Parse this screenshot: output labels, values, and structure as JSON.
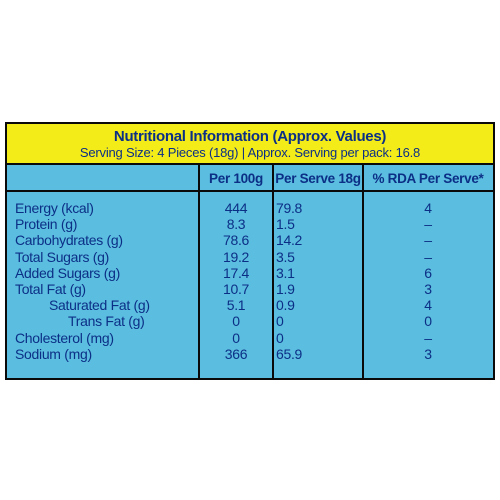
{
  "header": {
    "title": "Nutritional Information (Approx. Values)",
    "subtitle": "Serving Size: 4 Pieces (18g) | Approx. Serving per pack: 16.8"
  },
  "columns": {
    "per_100g": "Per 100g",
    "per_serve": "Per Serve 18g",
    "rda": "% RDA Per Serve*"
  },
  "rows": [
    {
      "name": "Energy (kcal)",
      "per_100g": "444",
      "per_serve": "79.8",
      "rda": "4"
    },
    {
      "name": "Protein (g)",
      "per_100g": "8.3",
      "per_serve": "1.5",
      "rda": "–"
    },
    {
      "name": "Carbohydrates (g)",
      "per_100g": "78.6",
      "per_serve": "14.2",
      "rda": "–"
    },
    {
      "name": "Total Sugars (g)",
      "per_100g": "19.2",
      "per_serve": "3.5",
      "rda": "–"
    },
    {
      "name": "Added Sugars (g)",
      "per_100g": "17.4",
      "per_serve": "3.1",
      "rda": "6"
    },
    {
      "name": "Total Fat (g)",
      "per_100g": "10.7",
      "per_serve": "1.9",
      "rda": "3"
    },
    {
      "name": "Saturated Fat (g)",
      "per_100g": "5.1",
      "per_serve": "0.9",
      "rda": "4"
    },
    {
      "name": "Trans Fat (g)",
      "per_100g": "0",
      "per_serve": "0",
      "rda": "0"
    },
    {
      "name": "Cholesterol (mg)",
      "per_100g": "0",
      "per_serve": "0",
      "rda": "–"
    },
    {
      "name": "Sodium (mg)",
      "per_100g": "366",
      "per_serve": "65.9",
      "rda": "3"
    }
  ],
  "colors": {
    "header_band": "#f3ec19",
    "table_body": "#5bbde0",
    "text": "#0c2f86",
    "border": "#0a0a0a"
  }
}
